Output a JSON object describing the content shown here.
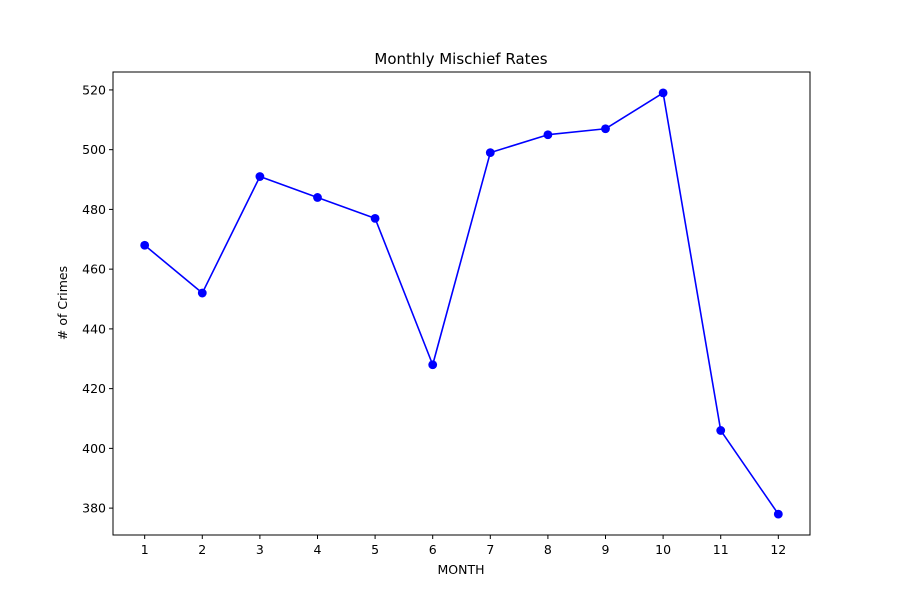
{
  "chart_data": {
    "type": "line",
    "title": "Monthly Mischief Rates",
    "xlabel": "MONTH",
    "ylabel": "# of Crimes",
    "x": [
      1,
      2,
      3,
      4,
      5,
      6,
      7,
      8,
      9,
      10,
      11,
      12
    ],
    "series": [
      {
        "values": [
          468,
          452,
          491,
          484,
          477,
          428,
          499,
          505,
          507,
          519,
          406,
          378
        ]
      }
    ],
    "xticks": [
      "1",
      "2",
      "3",
      "4",
      "5",
      "6",
      "7",
      "8",
      "9",
      "10",
      "11",
      "12"
    ],
    "yticks": [
      380,
      400,
      420,
      440,
      460,
      480,
      500,
      520
    ],
    "xlim": [
      0.45,
      12.55
    ],
    "ylim": [
      371,
      526
    ],
    "grid": false,
    "line_color": "#0000ff",
    "marker": "circle"
  }
}
